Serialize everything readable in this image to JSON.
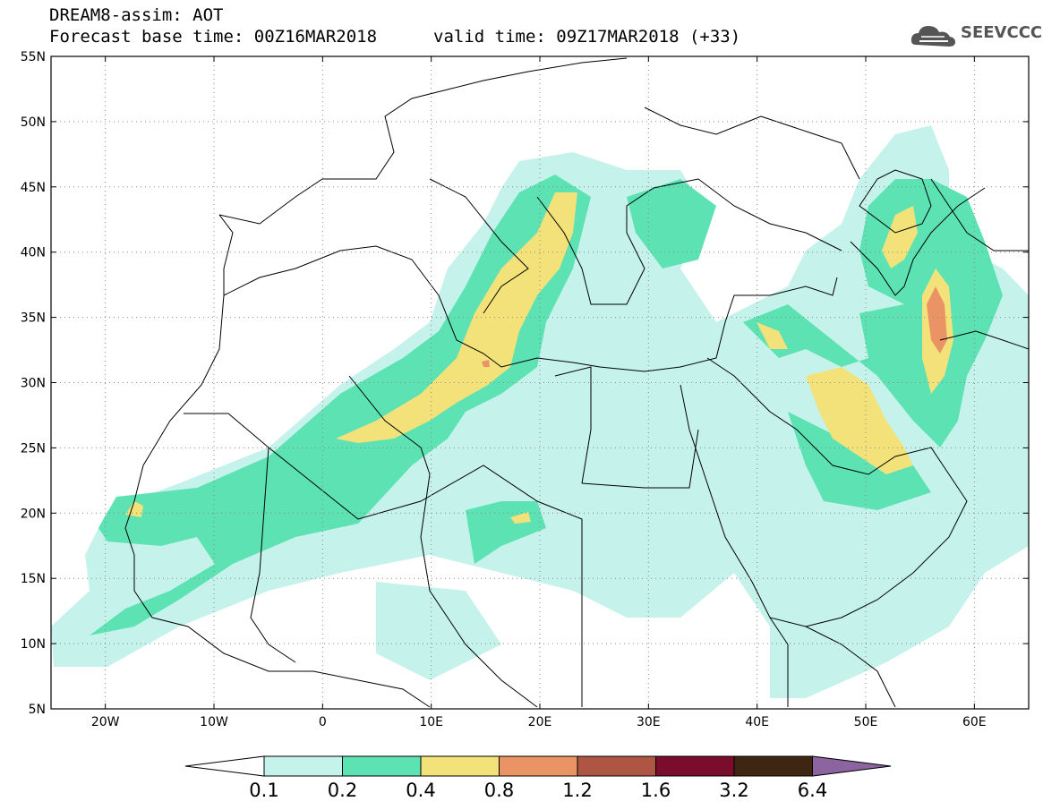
{
  "header": {
    "title": "DREAM8-assim: AOT",
    "base_time": "Forecast base time: 00Z16MAR2018",
    "valid_time": "valid time: 09Z17MAR2018 (+33)"
  },
  "logo": {
    "text": "SEEVCCC",
    "icon": "cloud-icon"
  },
  "map": {
    "lon_range": [
      -25,
      65
    ],
    "lat_range": [
      5,
      55
    ],
    "lon_ticks": [
      {
        "value": -20,
        "label": "20W"
      },
      {
        "value": -10,
        "label": "10W"
      },
      {
        "value": 0,
        "label": "0"
      },
      {
        "value": 10,
        "label": "10E"
      },
      {
        "value": 20,
        "label": "20E"
      },
      {
        "value": 30,
        "label": "30E"
      },
      {
        "value": 40,
        "label": "40E"
      },
      {
        "value": 50,
        "label": "50E"
      },
      {
        "value": 60,
        "label": "60E"
      }
    ],
    "lat_ticks": [
      {
        "value": 55,
        "label": "55N"
      },
      {
        "value": 50,
        "label": "50N"
      },
      {
        "value": 45,
        "label": "45N"
      },
      {
        "value": 40,
        "label": "40N"
      },
      {
        "value": 35,
        "label": "35N"
      },
      {
        "value": 30,
        "label": "30N"
      },
      {
        "value": 25,
        "label": "25N"
      },
      {
        "value": 20,
        "label": "20N"
      },
      {
        "value": 15,
        "label": "15N"
      },
      {
        "value": 10,
        "label": "10N"
      },
      {
        "value": 5,
        "label": "5N"
      }
    ],
    "grid": "dotted"
  },
  "colorbar": {
    "levels": [
      "0.1",
      "0.2",
      "0.4",
      "0.8",
      "1.2",
      "1.6",
      "3.2",
      "6.4"
    ],
    "colors": [
      "#ffffff",
      "#c5f2ea",
      "#5de2b4",
      "#f3e27a",
      "#ea9466",
      "#ae5544",
      "#7a0c2c",
      "#3e2612",
      "#8c64a0"
    ]
  }
}
